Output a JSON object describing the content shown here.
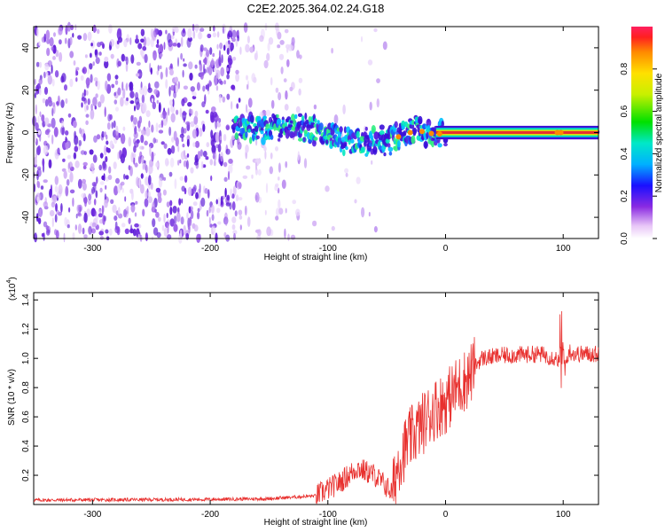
{
  "title": "C2E2.2025.364.02.24.G18",
  "colors": {
    "snr_line": "#e8302e",
    "spec_low": "#7a2be2",
    "spec_mid": "#00e0c0",
    "spec_high": "#e63030"
  },
  "chart_data": [
    {
      "type": "heatmap",
      "name": "spectrogram",
      "xlabel": "Height of straight line (km)",
      "ylabel": "Frequency (Hz)",
      "xlim": [
        -350,
        130
      ],
      "ylim": [
        -50,
        50
      ],
      "xticks": [
        -300,
        -200,
        -100,
        0,
        100
      ],
      "xtick_labels": [
        "-300",
        "-200",
        "-100",
        "0",
        "100"
      ],
      "yticks": [
        -40,
        -20,
        0,
        20,
        40
      ],
      "ytick_labels": [
        "-40",
        "-20",
        "0",
        "20",
        "40"
      ],
      "colorbar": {
        "label": "Normalized spectral amplitude",
        "range": [
          0,
          1
        ],
        "ticks": [
          0.0,
          0.2,
          0.4,
          0.6,
          0.8
        ],
        "tick_labels": [
          "0.0",
          "0.2",
          "0.4",
          "0.6",
          "0.8"
        ]
      },
      "ridge": {
        "x": [
          -175,
          -150,
          -130,
          -110,
          -95,
          -80,
          -65,
          -55,
          -45,
          -35,
          -25,
          -15,
          -8,
          0,
          20,
          60,
          100,
          130
        ],
        "y": [
          2,
          2,
          3,
          1,
          -2,
          -4,
          -5,
          -4,
          -3,
          -1,
          1,
          0,
          -1,
          0,
          0,
          0,
          0,
          0
        ]
      },
      "noise_region_km": [
        -350,
        -120
      ]
    },
    {
      "type": "line",
      "name": "snr",
      "xlabel": "Height of straight line (km)",
      "ylabel": "SNR (10 * v/v)",
      "y_scale_label": "(x10",
      "y_scale_exp": "4",
      "y_scale_close": ")",
      "xlim": [
        -350,
        130
      ],
      "ylim": [
        0,
        1.45
      ],
      "xticks": [
        -300,
        -200,
        -100,
        0,
        100
      ],
      "xtick_labels": [
        "-300",
        "-200",
        "-100",
        "0",
        "100"
      ],
      "yticks": [
        0.2,
        0.4,
        0.6,
        0.8,
        1.0,
        1.2,
        1.4
      ],
      "ytick_labels": [
        "0.2",
        "0.4",
        "0.6",
        "0.8",
        "1.0",
        "1.2",
        "1.4"
      ],
      "envelope": {
        "x": [
          -350,
          -200,
          -150,
          -110,
          -90,
          -75,
          -60,
          -45,
          -40,
          -30,
          -20,
          -10,
          0,
          10,
          20,
          30,
          50,
          80,
          95,
          100,
          105,
          110,
          130
        ],
        "y": [
          0.03,
          0.035,
          0.04,
          0.06,
          0.15,
          0.25,
          0.2,
          0.08,
          0.3,
          0.45,
          0.55,
          0.65,
          0.7,
          0.8,
          0.88,
          1.0,
          1.02,
          1.03,
          1.0,
          0.9,
          1.05,
          1.03,
          1.03
        ]
      }
    }
  ]
}
